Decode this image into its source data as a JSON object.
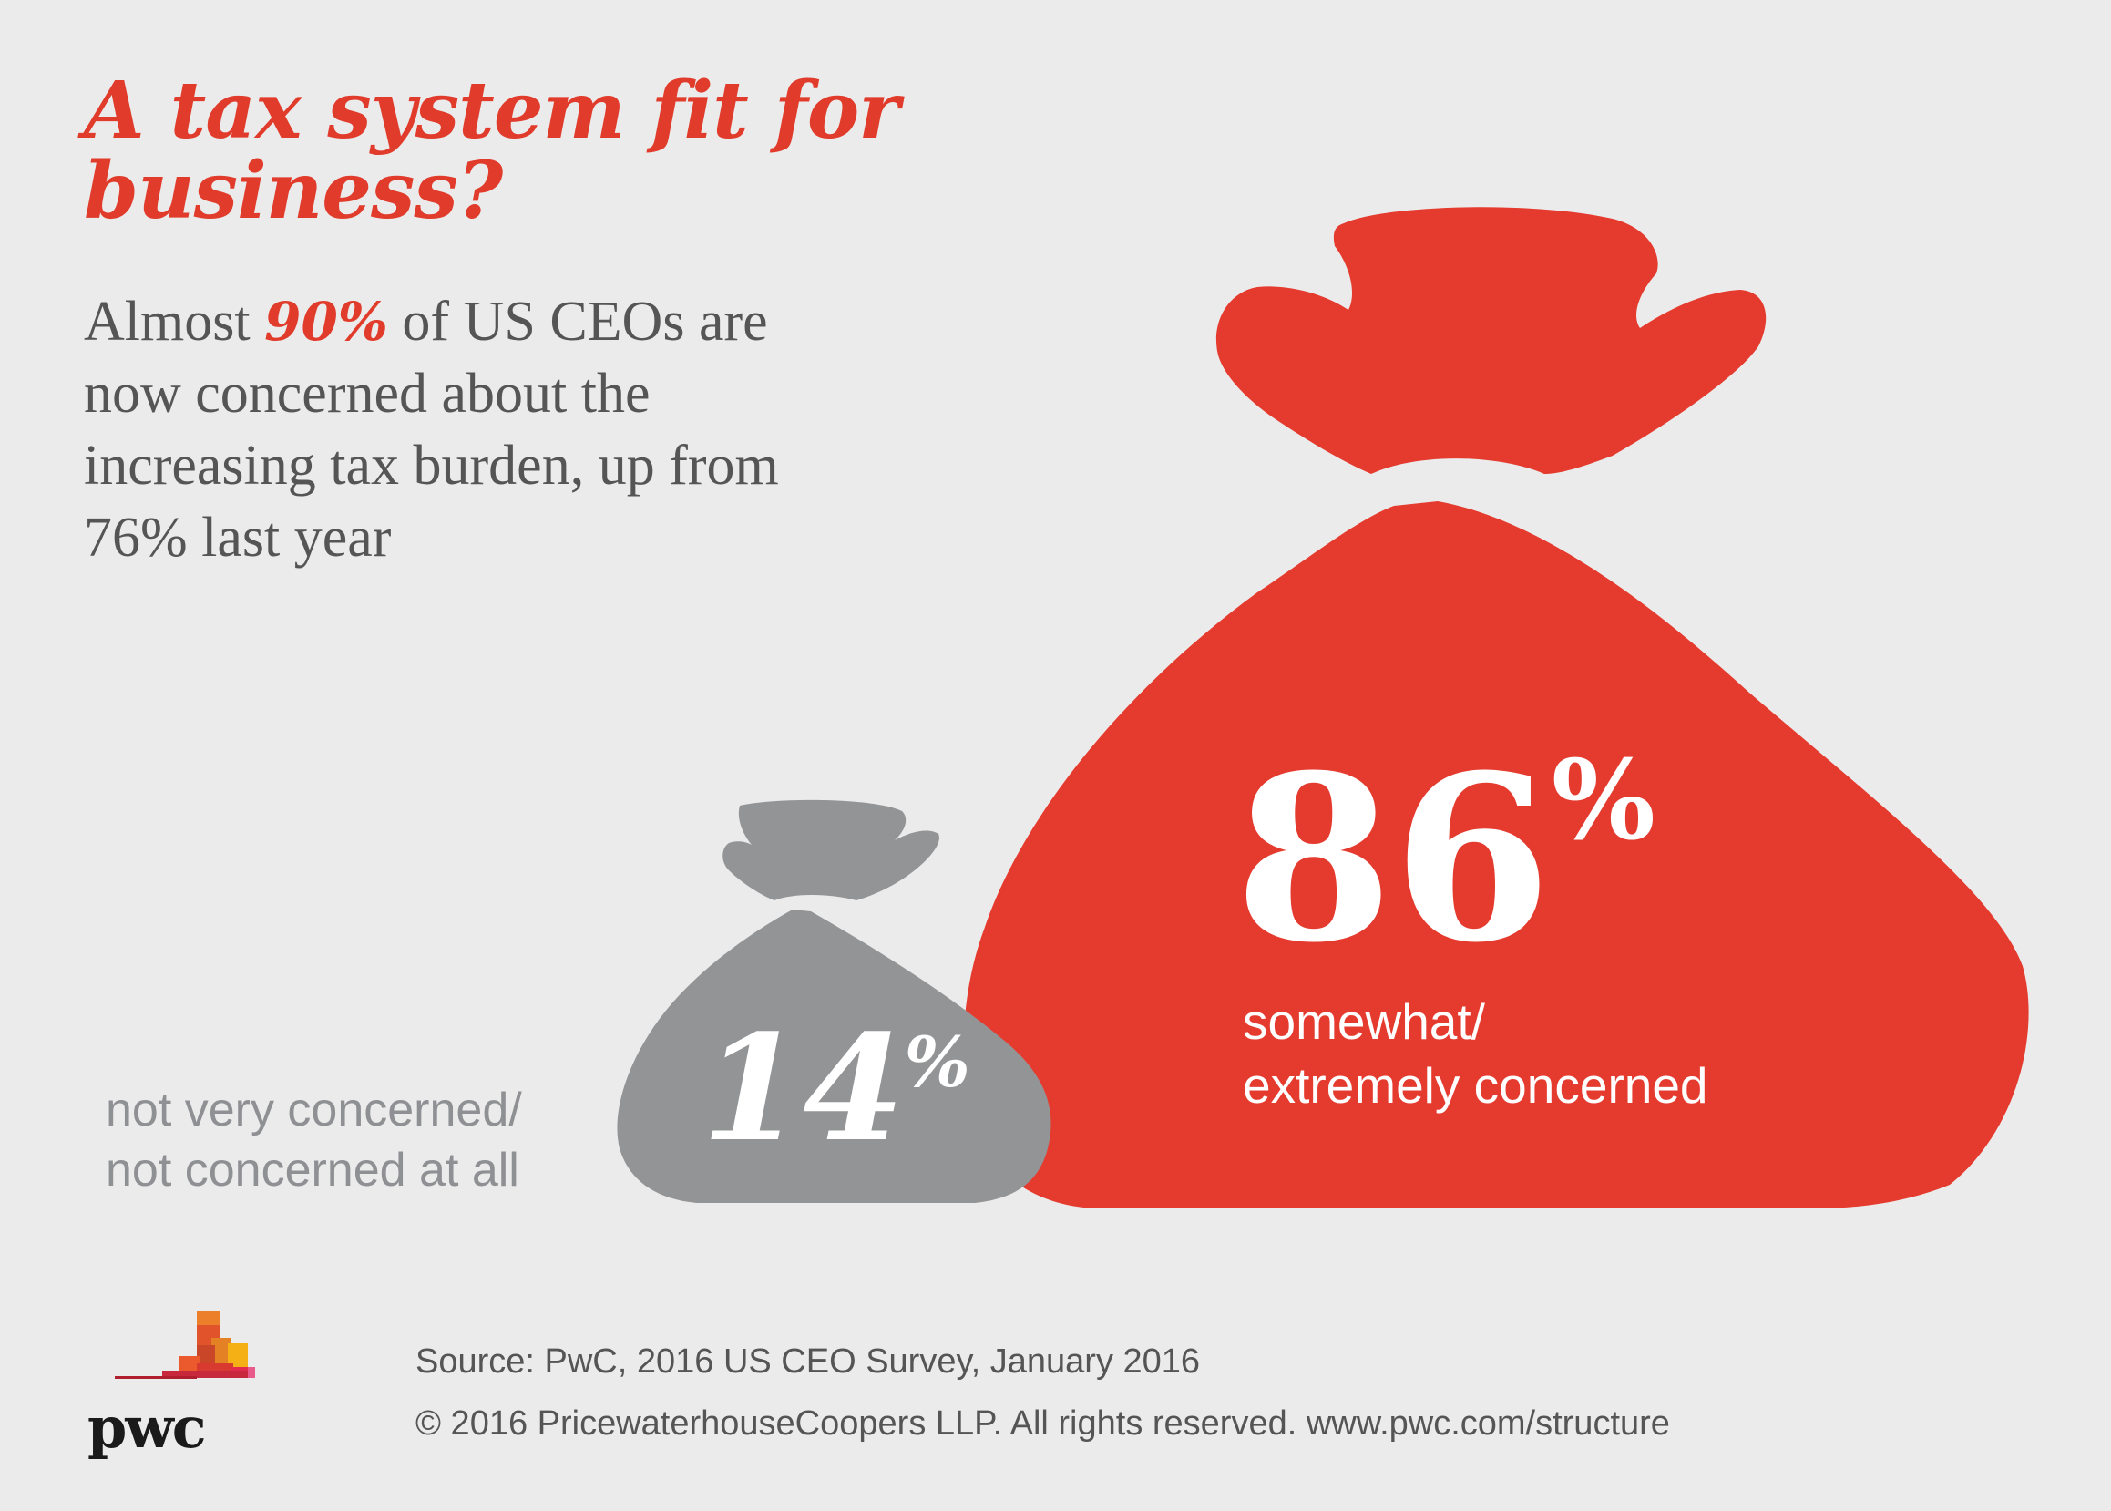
{
  "title_lines": [
    "A tax system fit for",
    "business?"
  ],
  "subtitle": {
    "line1_pre": "Almost ",
    "highlight": "90%",
    "line1_post": " of US CEOs are",
    "line2": "now concerned about the",
    "line3": "increasing tax burden, up from",
    "line4": "76% last year"
  },
  "chart_data": {
    "type": "pie",
    "categories": [
      "not very concerned/ not concerned at all",
      "somewhat/ extremely concerned"
    ],
    "values": [
      14,
      86
    ],
    "unit": "%",
    "colors": [
      "#939496",
      "#e53b2f"
    ],
    "value_labels": [
      {
        "number": "14",
        "unit": "%"
      },
      {
        "number": "86",
        "unit": "%"
      }
    ],
    "category_labels": [
      [
        "not very concerned/",
        "not concerned at all"
      ],
      [
        "somewhat/",
        "extremely concerned"
      ]
    ]
  },
  "logo": {
    "text": "pwc"
  },
  "footer": {
    "source": "Source: PwC, 2016 US CEO Survey, January 2016",
    "copyright": "© 2016 PricewaterhouseCoopers LLP. All rights reserved. www.pwc.com/structure"
  }
}
